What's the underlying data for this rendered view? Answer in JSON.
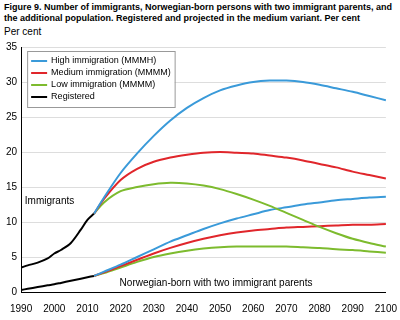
{
  "chart_data": {
    "type": "line",
    "title": "Figure 9. Number of immigrants, Norwegian-born persons with two immigrant parents, and the additional population. Registered and projected in the medium variant. Per cent",
    "y_label": "Per cent",
    "annotations": [
      "Immigrants",
      "Norwegian-born with two immigrant parents"
    ],
    "x": [
      1990,
      1992,
      1995,
      1998,
      2000,
      2002,
      2005,
      2008,
      2010,
      2012,
      2015,
      2020,
      2025,
      2030,
      2035,
      2040,
      2045,
      2050,
      2055,
      2060,
      2065,
      2070,
      2075,
      2080,
      2085,
      2090,
      2095,
      2100
    ],
    "series": [
      {
        "name": "High immigration (MMMH)",
        "color": "#3a9ad9",
        "values": [
          null,
          null,
          null,
          null,
          null,
          null,
          null,
          null,
          null,
          11.2,
          13.5,
          17.0,
          19.8,
          22.3,
          24.5,
          26.3,
          27.7,
          28.8,
          29.5,
          30.0,
          30.2,
          30.2,
          30.0,
          29.6,
          29.1,
          28.6,
          28.0,
          27.4
        ]
      },
      {
        "name": "Medium immigration (MMMM)",
        "color": "#e0262b",
        "values": [
          null,
          null,
          null,
          null,
          null,
          null,
          null,
          null,
          null,
          11.2,
          13.3,
          16.0,
          17.6,
          18.6,
          19.2,
          19.6,
          19.9,
          20.0,
          19.9,
          19.8,
          19.5,
          19.2,
          18.8,
          18.3,
          17.8,
          17.2,
          16.7,
          16.2
        ]
      },
      {
        "name": "Low immigration (MMMM)",
        "color": "#7dbb2e",
        "values": [
          null,
          null,
          null,
          null,
          null,
          null,
          null,
          null,
          null,
          11.2,
          12.8,
          14.4,
          15.0,
          15.4,
          15.6,
          15.5,
          15.2,
          14.7,
          14.0,
          13.2,
          12.3,
          11.3,
          10.3,
          9.3,
          8.4,
          7.6,
          7.0,
          6.5
        ]
      },
      {
        "name": "Registered",
        "color": "#000000",
        "values": [
          3.5,
          3.8,
          4.2,
          4.8,
          5.5,
          6.0,
          7.0,
          8.9,
          10.3,
          11.2,
          null,
          null,
          null,
          null,
          null,
          null,
          null,
          null,
          null,
          null,
          null,
          null,
          null,
          null,
          null,
          null,
          null,
          null
        ]
      },
      {
        "name": "High immigration (MMMH)",
        "color": "#3a9ad9",
        "values": [
          null,
          null,
          null,
          null,
          null,
          null,
          null,
          null,
          null,
          2.3,
          2.9,
          3.9,
          5.0,
          6.1,
          7.2,
          8.1,
          9.0,
          9.8,
          10.5,
          11.1,
          11.7,
          12.1,
          12.5,
          12.8,
          13.1,
          13.3,
          13.5,
          13.6
        ]
      },
      {
        "name": "Medium immigration (MMMM)",
        "color": "#e0262b",
        "values": [
          null,
          null,
          null,
          null,
          null,
          null,
          null,
          null,
          null,
          2.3,
          2.8,
          3.7,
          4.6,
          5.5,
          6.3,
          7.0,
          7.6,
          8.1,
          8.5,
          8.8,
          9.0,
          9.2,
          9.3,
          9.4,
          9.5,
          9.6,
          9.6,
          9.7
        ]
      },
      {
        "name": "Low immigration (MMMM)",
        "color": "#7dbb2e",
        "values": [
          null,
          null,
          null,
          null,
          null,
          null,
          null,
          null,
          null,
          2.3,
          2.7,
          3.5,
          4.3,
          5.0,
          5.5,
          5.9,
          6.2,
          6.4,
          6.5,
          6.5,
          6.5,
          6.5,
          6.4,
          6.3,
          6.1,
          6.0,
          5.8,
          5.6
        ]
      },
      {
        "name": "Registered",
        "color": "#000000",
        "values": [
          0.3,
          0.45,
          0.7,
          0.95,
          1.1,
          1.3,
          1.6,
          1.9,
          2.1,
          2.3,
          null,
          null,
          null,
          null,
          null,
          null,
          null,
          null,
          null,
          null,
          null,
          null,
          null,
          null,
          null,
          null,
          null,
          null
        ]
      }
    ],
    "xlim": [
      1990,
      2100
    ],
    "xticks": [
      1990,
      2000,
      2010,
      2020,
      2030,
      2040,
      2050,
      2060,
      2070,
      2080,
      2090,
      2100
    ],
    "ylim": [
      0,
      35
    ],
    "yticks": [
      0,
      5,
      10,
      15,
      20,
      25,
      30,
      35
    ],
    "grid": true,
    "legend": "upper left"
  }
}
